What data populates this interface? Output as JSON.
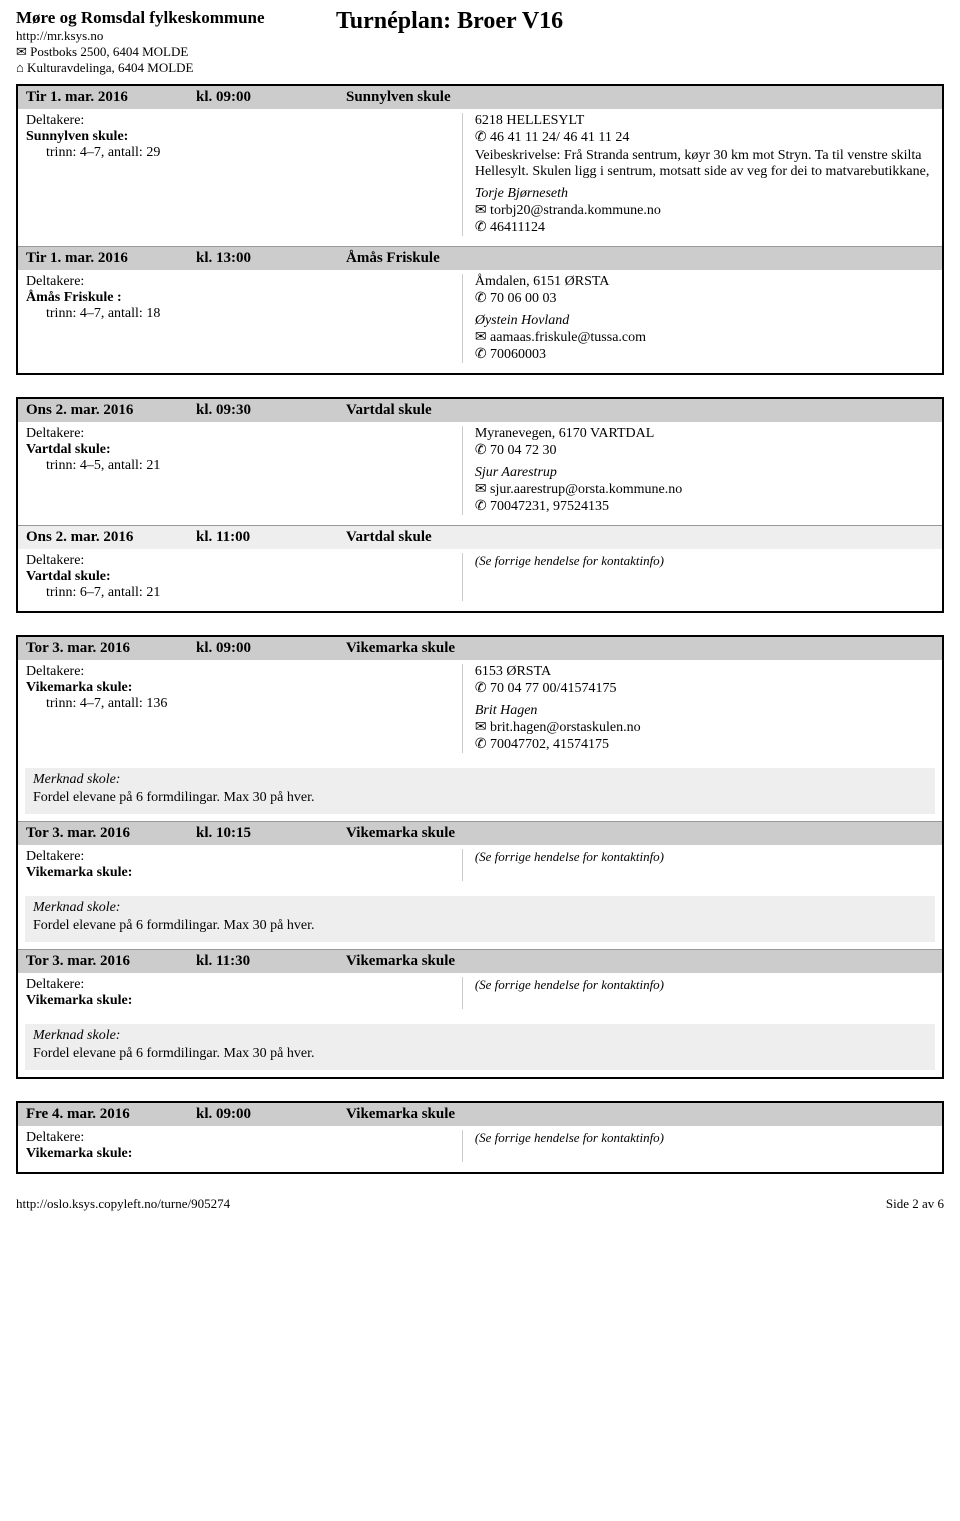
{
  "header": {
    "org_name": "Møre og Romsdal fylkeskommune",
    "org_url": "http://mr.ksys.no",
    "addr1": "✉ Postboks 2500, 6404 MOLDE",
    "addr2": "⌂ Kulturavdelinga, 6404 MOLDE",
    "title": "Turnéplan: Broer V16"
  },
  "groups": [
    {
      "events": [
        {
          "header_bg": "dark",
          "date": "Tir 1. mar. 2016",
          "time": "kl. 09:00",
          "venue": "Sunnylven skule",
          "deltakere_label": "Deltakere:",
          "school": "Sunnylven skule:",
          "trinn": "trinn: 4–7, antall: 29",
          "addr": "6218 HELLESYLT",
          "phone": "✆ 46 41 11 24/ 46 41 11 24",
          "desc": "Veibeskrivelse: Frå Stranda sentrum, køyr 30 km mot Stryn. Ta til venstre skilta Hellesylt. Skulen ligg i sentrum, motsatt side av veg for dei to matvarebutikkane,",
          "contact_name": "Torje Bjørneseth",
          "contact_email": "✉ torbj20@stranda.kommune.no",
          "contact_phone": "✆ 46411124"
        },
        {
          "header_bg": "dark",
          "date": "Tir 1. mar. 2016",
          "time": "kl. 13:00",
          "venue": "Åmås Friskule",
          "deltakere_label": "Deltakere:",
          "school": "Åmås Friskule :",
          "trinn": "trinn: 4–7, antall: 18",
          "addr": "Åmdalen, 6151 ØRSTA",
          "phone": "✆ 70 06 00 03",
          "contact_name": "Øystein Hovland",
          "contact_email": "✉ aamaas.friskule@tussa.com",
          "contact_phone": "✆ 70060003"
        }
      ]
    },
    {
      "events": [
        {
          "header_bg": "dark",
          "date": "Ons 2. mar. 2016",
          "time": "kl. 09:30",
          "venue": "Vartdal skule",
          "deltakere_label": "Deltakere:",
          "school": "Vartdal skule:",
          "trinn": "trinn: 4–5, antall: 21",
          "addr": "Myranevegen, 6170 VARTDAL",
          "phone": "✆ 70 04 72 30",
          "contact_name": "Sjur Aarestrup",
          "contact_email": "✉ sjur.aarestrup@orsta.kommune.no",
          "contact_phone": "✆ 70047231, 97524135"
        },
        {
          "header_bg": "light",
          "date": "Ons 2. mar. 2016",
          "time": "kl. 11:00",
          "venue": "Vartdal skule",
          "deltakere_label": "Deltakere:",
          "school": "Vartdal skule:",
          "trinn": "trinn: 6–7, antall: 21",
          "see_prev": "(Se forrige hendelse for kontaktinfo)"
        }
      ]
    },
    {
      "events": [
        {
          "header_bg": "dark",
          "date": "Tor 3. mar. 2016",
          "time": "kl. 09:00",
          "venue": "Vikemarka skule",
          "deltakere_label": "Deltakere:",
          "school": "Vikemarka skule:",
          "trinn": "trinn: 4–7, antall: 136",
          "addr": "6153 ØRSTA",
          "phone": "✆ 70 04 77 00/41574175",
          "contact_name": "Brit Hagen",
          "contact_email": "✉ brit.hagen@orstaskulen.no",
          "contact_phone": "✆ 70047702, 41574175",
          "merknad_label": "Merknad skole:",
          "merknad_text": "Fordel elevane på 6 formdilingar. Max 30 på hver."
        },
        {
          "header_bg": "dark",
          "date": "Tor 3. mar. 2016",
          "time": "kl. 10:15",
          "venue": "Vikemarka skule",
          "deltakere_label": "Deltakere:",
          "school": "Vikemarka skule:",
          "see_prev": "(Se forrige hendelse for kontaktinfo)",
          "merknad_label": "Merknad skole:",
          "merknad_text": "Fordel elevane på 6 formdilingar. Max 30 på hver."
        },
        {
          "header_bg": "dark",
          "date": "Tor 3. mar. 2016",
          "time": "kl. 11:30",
          "venue": "Vikemarka skule",
          "deltakere_label": "Deltakere:",
          "school": "Vikemarka skule:",
          "see_prev": "(Se forrige hendelse for kontaktinfo)",
          "merknad_label": "Merknad skole:",
          "merknad_text": "Fordel elevane på 6 formdilingar. Max 30 på hver."
        }
      ]
    },
    {
      "events": [
        {
          "header_bg": "dark",
          "date": "Fre 4. mar. 2016",
          "time": "kl. 09:00",
          "venue": "Vikemarka skule",
          "deltakere_label": "Deltakere:",
          "school": "Vikemarka skule:",
          "see_prev": "(Se forrige hendelse for kontaktinfo)"
        }
      ]
    }
  ],
  "footer": {
    "left": "http://oslo.ksys.copyleft.no/turne/905274",
    "right": "Side 2 av 6"
  }
}
